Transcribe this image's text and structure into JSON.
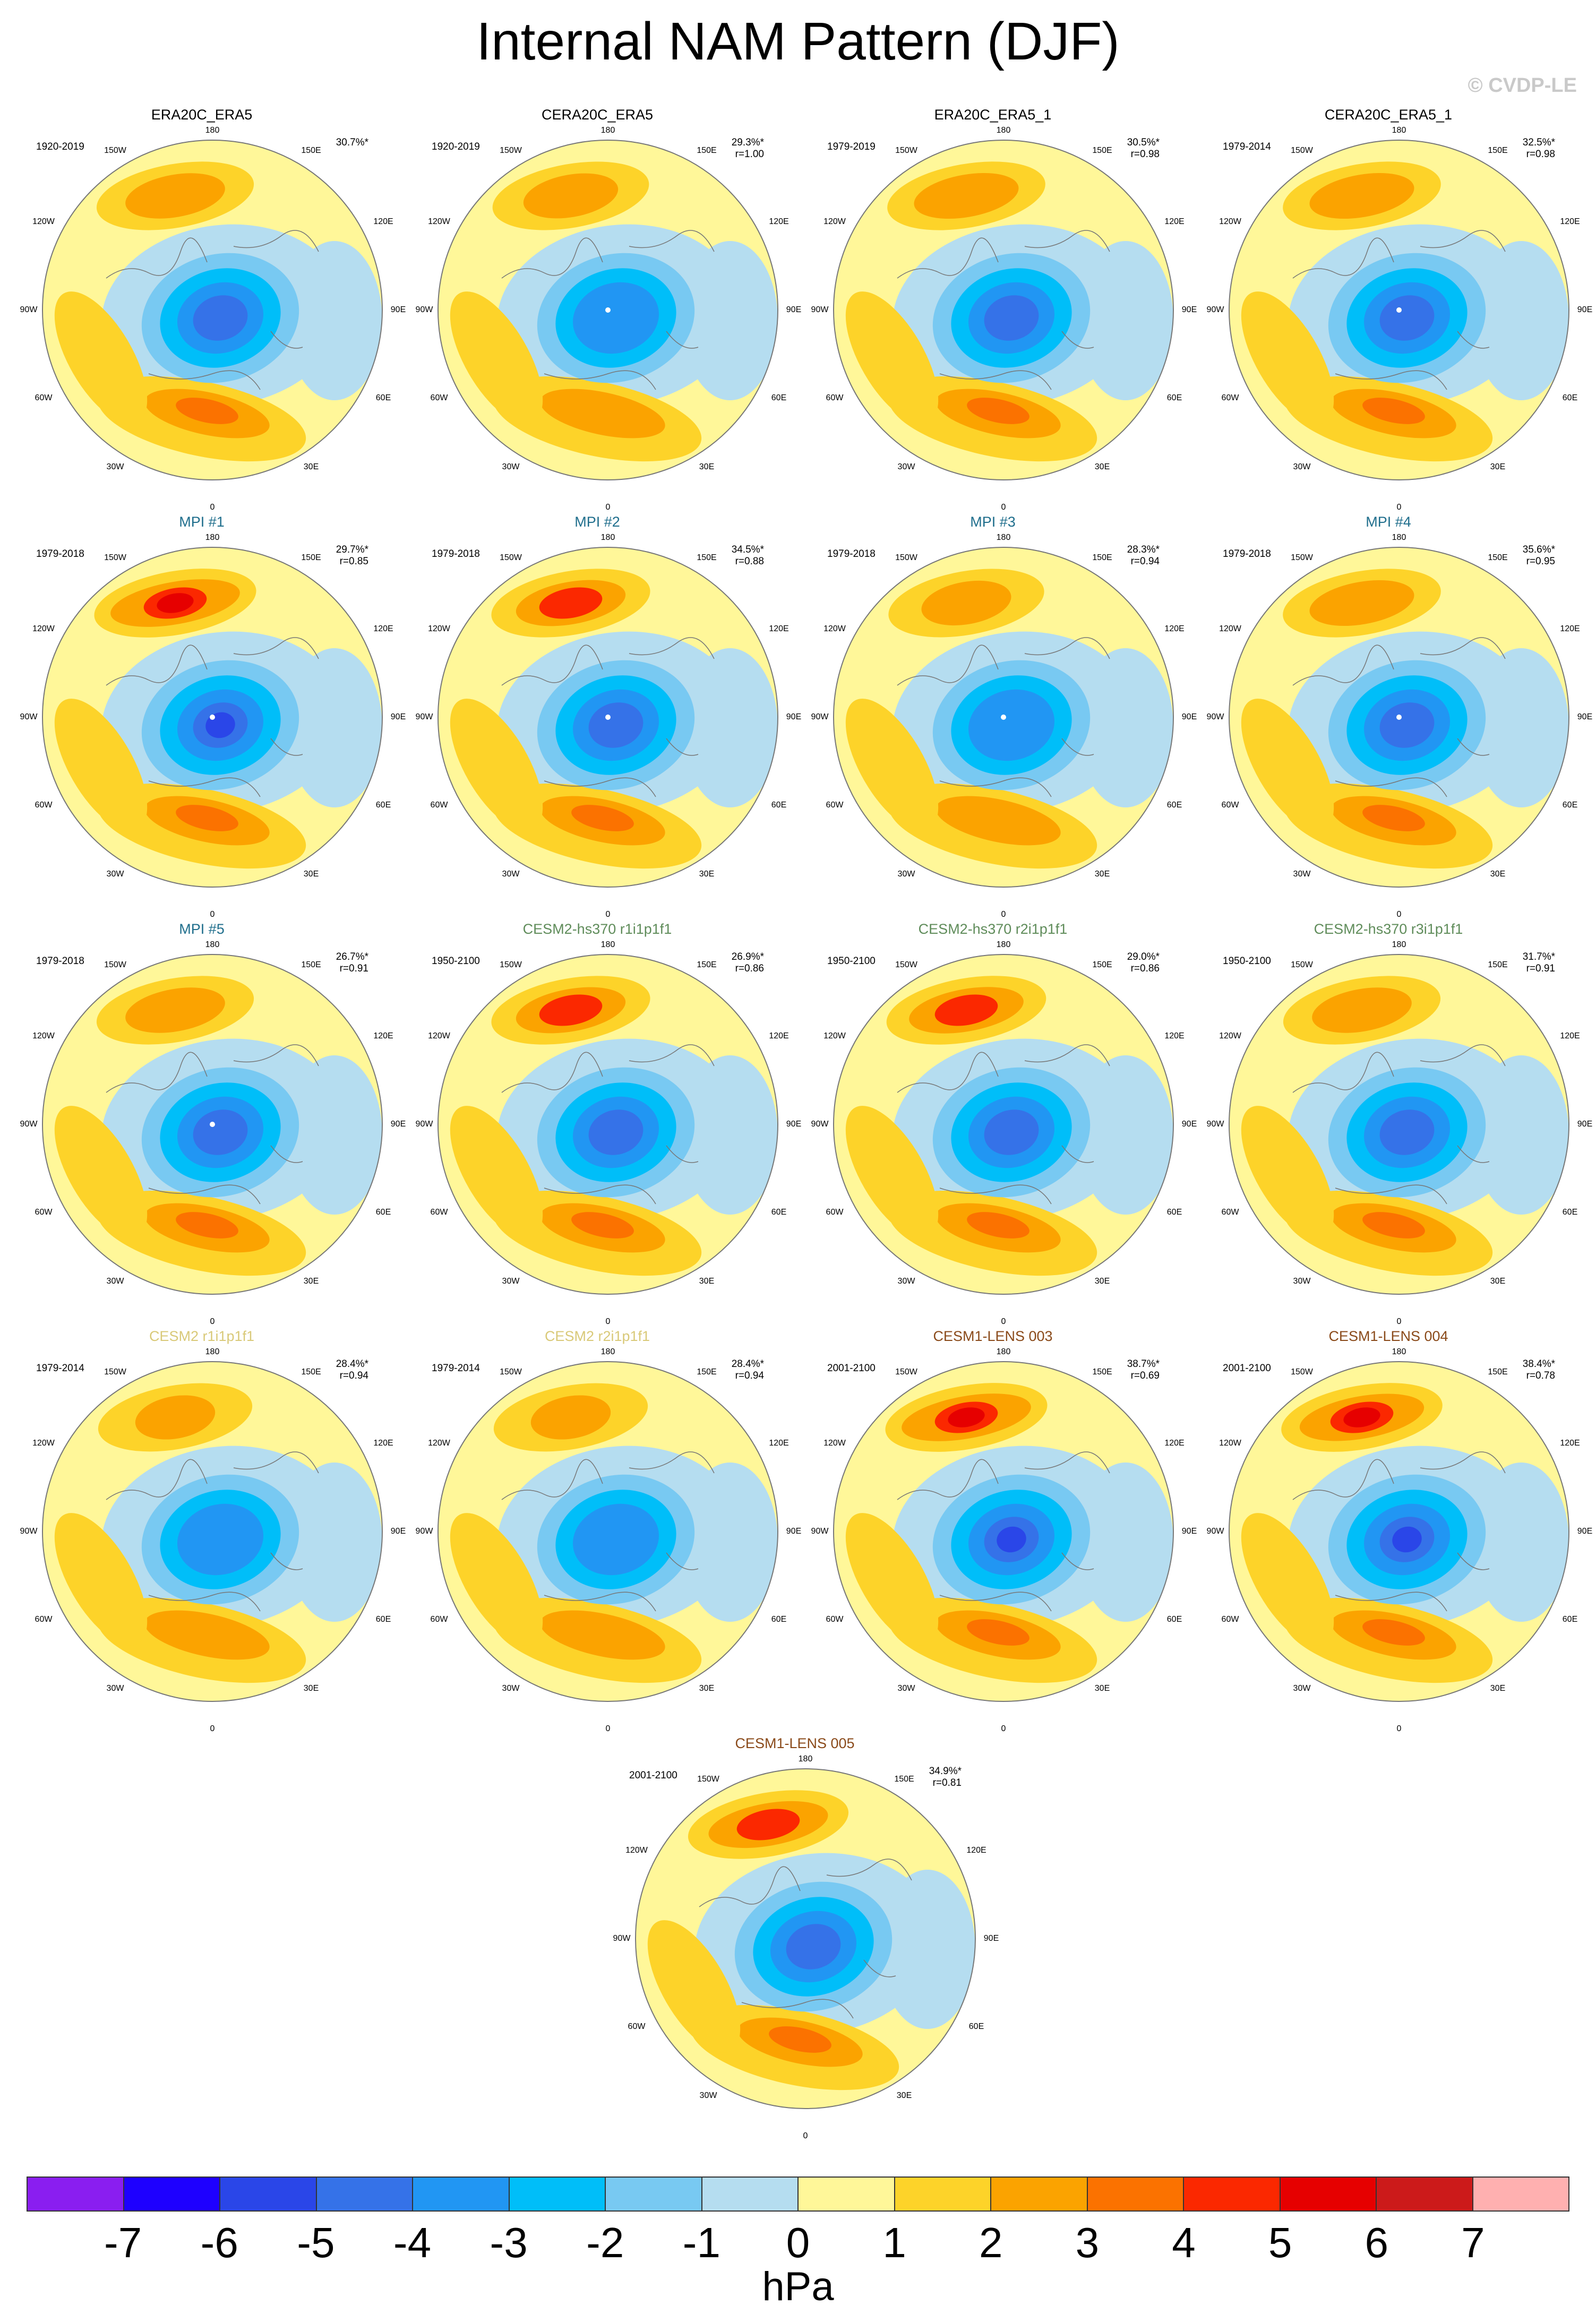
{
  "title": "Internal NAM Pattern (DJF)",
  "watermark": "© CVDP-LE",
  "axis_labels": {
    "top": "180",
    "bottom": "0",
    "upper_left": "150W",
    "upper_right": "150E",
    "left_upper": "120W",
    "right_upper": "120E",
    "left": "90W",
    "right": "90E",
    "left_lower": "60W",
    "right_lower": "60E",
    "lower_left": "30W",
    "lower_right": "30E"
  },
  "panels": [
    {
      "title": "ERA20C_ERA5",
      "title_color": "#000000",
      "period": "1920-2019",
      "pct": "30.7%*",
      "r": "",
      "scale": 1.0,
      "pole_dot": false
    },
    {
      "title": "CERA20C_ERA5",
      "title_color": "#000000",
      "period": "1920-2019",
      "pct": "29.3%*",
      "r": "r=1.00",
      "scale": 0.95,
      "pole_dot": true
    },
    {
      "title": "ERA20C_ERA5_1",
      "title_color": "#000000",
      "period": "1979-2019",
      "pct": "30.5%*",
      "r": "r=0.98",
      "scale": 1.05,
      "pole_dot": false
    },
    {
      "title": "CERA20C_ERA5_1",
      "title_color": "#000000",
      "period": "1979-2014",
      "pct": "32.5%*",
      "r": "r=0.98",
      "scale": 1.05,
      "pole_dot": true
    },
    {
      "title": "MPI #1",
      "title_color": "#1f6e8c",
      "period": "1979-2018",
      "pct": "29.7%*",
      "r": "r=0.85",
      "scale": 1.3,
      "pole_dot": true
    },
    {
      "title": "MPI #2",
      "title_color": "#1f6e8c",
      "period": "1979-2018",
      "pct": "34.5%*",
      "r": "r=0.88",
      "scale": 1.1,
      "pole_dot": true
    },
    {
      "title": "MPI #3",
      "title_color": "#1f6e8c",
      "period": "1979-2018",
      "pct": "28.3%*",
      "r": "r=0.94",
      "scale": 0.9,
      "pole_dot": true
    },
    {
      "title": "MPI #4",
      "title_color": "#1f6e8c",
      "period": "1979-2018",
      "pct": "35.6%*",
      "r": "r=0.95",
      "scale": 1.05,
      "pole_dot": true
    },
    {
      "title": "MPI #5",
      "title_color": "#1f6e8c",
      "period": "1979-2018",
      "pct": "26.7%*",
      "r": "r=0.91",
      "scale": 1.0,
      "pole_dot": true
    },
    {
      "title": "CESM2-hs370 r1i1p1f1",
      "title_color": "#5f8c5a",
      "period": "1950-2100",
      "pct": "26.9%*",
      "r": "r=0.86",
      "scale": 1.1,
      "pole_dot": false
    },
    {
      "title": "CESM2-hs370 r2i1p1f1",
      "title_color": "#5f8c5a",
      "period": "1950-2100",
      "pct": "29.0%*",
      "r": "r=0.86",
      "scale": 1.15,
      "pole_dot": false
    },
    {
      "title": "CESM2-hs370 r3i1p1f1",
      "title_color": "#5f8c5a",
      "period": "1950-2100",
      "pct": "31.7%*",
      "r": "r=0.91",
      "scale": 1.0,
      "pole_dot": false
    },
    {
      "title": "CESM2 r1i1p1f1",
      "title_color": "#d9c978",
      "period": "1979-2014",
      "pct": "28.4%*",
      "r": "r=0.94",
      "scale": 0.8,
      "pole_dot": false
    },
    {
      "title": "CESM2 r2i1p1f1",
      "title_color": "#d9c978",
      "period": "1979-2014",
      "pct": "28.4%*",
      "r": "r=0.94",
      "scale": 0.8,
      "pole_dot": false
    },
    {
      "title": "CESM1-LENS 003",
      "title_color": "#8a4a1a",
      "period": "2001-2100",
      "pct": "38.7%*",
      "r": "r=0.69",
      "scale": 1.3,
      "pole_dot": false
    },
    {
      "title": "CESM1-LENS 004",
      "title_color": "#8a4a1a",
      "period": "2001-2100",
      "pct": "38.4%*",
      "r": "r=0.78",
      "scale": 1.25,
      "pole_dot": false
    },
    {
      "title": "CESM1-LENS 005",
      "title_color": "#8a4a1a",
      "period": "2001-2100",
      "pct": "34.9%*",
      "r": "r=0.81",
      "scale": 1.2,
      "pole_dot": false
    }
  ],
  "colorbar": {
    "colors": [
      "#8a1ef0",
      "#1e00ff",
      "#2a46e8",
      "#3572e8",
      "#2196f3",
      "#00bef9",
      "#78c9f2",
      "#b5ddf0",
      "#fff799",
      "#fdd329",
      "#fba300",
      "#fb7200",
      "#fb2800",
      "#e60000",
      "#cc1a1a",
      "#ffb0b0"
    ],
    "ticks": [
      "-7",
      "-6",
      "-5",
      "-4",
      "-3",
      "-2",
      "-1",
      "0",
      "1",
      "2",
      "3",
      "4",
      "5",
      "6",
      "7"
    ],
    "units": "hPa"
  }
}
